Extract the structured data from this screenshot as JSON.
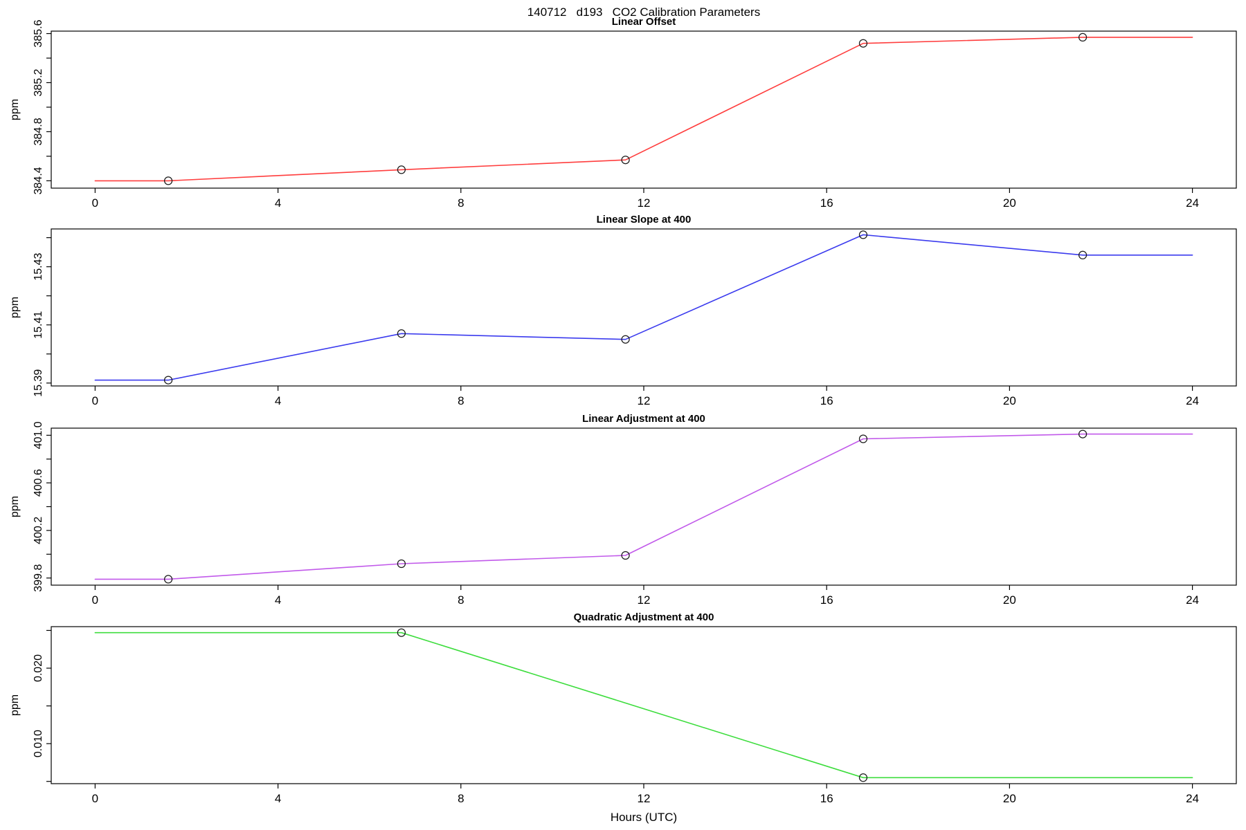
{
  "page_title": "140712   d193   CO2 Calibration Parameters",
  "xlabel": "Hours (UTC)",
  "chart_data": [
    {
      "type": "line",
      "title": "Linear Offset",
      "ylabel": "ppm",
      "line_color": "#ff3d3d",
      "marker": "open-circle",
      "marker_color": "#1a1a1a",
      "x": [
        1.6,
        6.7,
        11.6,
        16.8,
        21.6
      ],
      "y": [
        384.4,
        384.49,
        384.57,
        385.52,
        385.57
      ],
      "line_path": {
        "x": [
          0,
          1.6,
          6.7,
          11.6,
          16.8,
          21.6,
          24
        ],
        "y": [
          384.4,
          384.4,
          384.49,
          384.57,
          385.52,
          385.57,
          385.57
        ]
      },
      "xlim": [
        -0.96,
        24.96
      ],
      "ylim": [
        384.34,
        385.62
      ],
      "xticks": [
        0,
        4,
        8,
        12,
        16,
        20,
        24
      ],
      "yticks": [
        384.4,
        384.6,
        384.8,
        385.0,
        385.2,
        385.4,
        385.6
      ],
      "ytick_labels": [
        "384.4",
        "",
        "384.8",
        "",
        "385.2",
        "",
        "385.6"
      ],
      "grid": false,
      "legend": null
    },
    {
      "type": "line",
      "title": "Linear Slope at 400",
      "ylabel": "ppm",
      "line_color": "#3a3aee",
      "marker": "open-circle",
      "marker_color": "#1a1a1a",
      "x": [
        1.6,
        6.7,
        11.6,
        16.8,
        21.6
      ],
      "y": [
        15.391,
        15.407,
        15.405,
        15.441,
        15.434
      ],
      "line_path": {
        "x": [
          0,
          1.6,
          6.7,
          11.6,
          16.8,
          21.6,
          24
        ],
        "y": [
          15.391,
          15.391,
          15.407,
          15.405,
          15.441,
          15.434,
          15.434
        ]
      },
      "xlim": [
        -0.96,
        24.96
      ],
      "ylim": [
        15.389,
        15.443
      ],
      "xticks": [
        0,
        4,
        8,
        12,
        16,
        20,
        24
      ],
      "yticks": [
        15.39,
        15.4,
        15.41,
        15.42,
        15.43,
        15.44
      ],
      "ytick_labels": [
        "15.39",
        "",
        "15.41",
        "",
        "15.43",
        ""
      ],
      "grid": false,
      "legend": null
    },
    {
      "type": "line",
      "title": "Linear Adjustment at 400",
      "ylabel": "ppm",
      "line_color": "#c159ea",
      "marker": "open-circle",
      "marker_color": "#1a1a1a",
      "x": [
        1.6,
        6.7,
        11.6,
        16.8,
        21.6
      ],
      "y": [
        399.79,
        399.92,
        399.99,
        400.97,
        401.01
      ],
      "line_path": {
        "x": [
          0,
          1.6,
          6.7,
          11.6,
          16.8,
          21.6,
          24
        ],
        "y": [
          399.79,
          399.79,
          399.92,
          399.99,
          400.97,
          401.01,
          401.01
        ]
      },
      "xlim": [
        -0.96,
        24.96
      ],
      "ylim": [
        399.74,
        401.06
      ],
      "xticks": [
        0,
        4,
        8,
        12,
        16,
        20,
        24
      ],
      "yticks": [
        399.8,
        400.0,
        400.2,
        400.4,
        400.6,
        400.8,
        401.0
      ],
      "ytick_labels": [
        "399.8",
        "",
        "400.2",
        "",
        "400.6",
        "",
        "401.0"
      ],
      "grid": false,
      "legend": null
    },
    {
      "type": "line",
      "title": "Quadratic Adjustment at 400",
      "ylabel": "ppm",
      "line_color": "#3ddd3d",
      "marker": "open-circle",
      "marker_color": "#1a1a1a",
      "x": [
        6.7,
        16.8
      ],
      "y": [
        0.0247,
        0.0055
      ],
      "line_path": {
        "x": [
          0,
          6.7,
          16.8,
          24
        ],
        "y": [
          0.0247,
          0.0247,
          0.0055,
          0.0055
        ]
      },
      "xlim": [
        -0.96,
        24.96
      ],
      "ylim": [
        0.0047,
        0.0255
      ],
      "xticks": [
        0,
        4,
        8,
        12,
        16,
        20,
        24
      ],
      "yticks": [
        0.005,
        0.01,
        0.015,
        0.02,
        0.025
      ],
      "ytick_labels": [
        "",
        "0.010",
        "",
        "0.020",
        ""
      ],
      "grid": false,
      "legend": null
    }
  ]
}
